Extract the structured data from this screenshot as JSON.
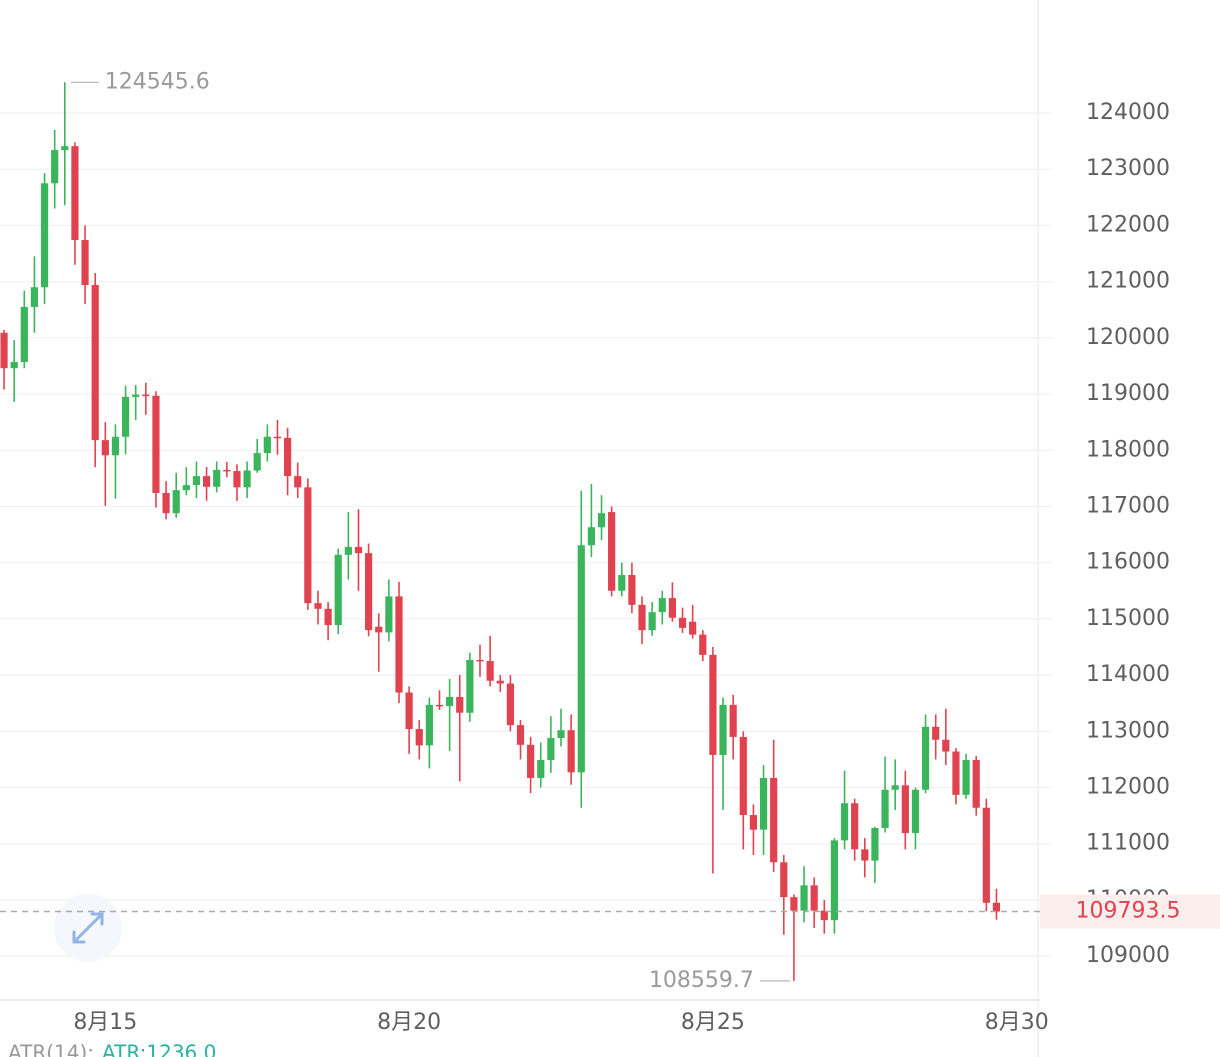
{
  "chart_data": {
    "type": "candlestick",
    "open": [
      120090,
      119460,
      119570,
      120550,
      120900,
      122750,
      123340,
      123410,
      121740,
      120940,
      118180,
      117910,
      118240,
      118950,
      118990,
      118970,
      117240,
      116880,
      117290,
      117380,
      117540,
      117350,
      117650,
      117630,
      117340,
      117640,
      117950,
      118240,
      118220,
      117540,
      117340,
      115280,
      115180,
      114890,
      116140,
      116280,
      116170,
      114860,
      114760,
      115400,
      113690,
      113040,
      112750,
      113470,
      113450,
      113610,
      113330,
      114270,
      114250,
      113900,
      113850,
      113110,
      112760,
      112170,
      112490,
      112880,
      113020,
      112270,
      116310,
      116630,
      116900,
      115500,
      115780,
      115250,
      114800,
      115120,
      115370,
      115020,
      114950,
      114720,
      114360,
      112580,
      113470,
      112900,
      111510,
      111250,
      112170,
      110670,
      110050,
      109810,
      110260,
      109810,
      109640,
      111060,
      111720,
      110900,
      110700,
      111280,
      111960,
      112040,
      111190,
      111960,
      113080,
      112850,
      112640,
      111870,
      112490,
      111640,
      109950
    ],
    "high": [
      120140,
      119960,
      120840,
      121450,
      122930,
      123700,
      124545.6,
      123480,
      122000,
      121150,
      118500,
      118460,
      119150,
      119160,
      119200,
      119050,
      117450,
      117600,
      117700,
      117800,
      117700,
      117800,
      117790,
      117750,
      117800,
      118200,
      118460,
      118540,
      118400,
      117780,
      117500,
      115500,
      115300,
      116250,
      116900,
      116950,
      116340,
      115100,
      115700,
      115660,
      113800,
      113200,
      113600,
      113730,
      113930,
      114000,
      114400,
      114540,
      114700,
      114000,
      114000,
      113200,
      112900,
      112800,
      113270,
      113400,
      113300,
      117280,
      117400,
      117200,
      117000,
      116000,
      116000,
      115400,
      115300,
      115500,
      115650,
      115200,
      115250,
      114800,
      114500,
      113600,
      113650,
      113000,
      111700,
      112400,
      112850,
      110800,
      110100,
      110600,
      110400,
      110000,
      111100,
      112300,
      111800,
      111100,
      111300,
      112550,
      112500,
      112300,
      112000,
      113300,
      113300,
      113400,
      112700,
      112600,
      112560,
      111800,
      110200
    ],
    "low": [
      119080,
      118860,
      119460,
      120090,
      120600,
      122300,
      122360,
      121300,
      120600,
      117700,
      117010,
      117140,
      117930,
      118540,
      118630,
      116980,
      116770,
      116800,
      117200,
      117150,
      117100,
      117250,
      117520,
      117100,
      117150,
      117600,
      117800,
      117920,
      117200,
      117150,
      115160,
      114900,
      114620,
      114730,
      115700,
      115500,
      114690,
      114060,
      114600,
      113500,
      112600,
      112500,
      112340,
      113380,
      112650,
      112110,
      113170,
      113970,
      113800,
      113700,
      113000,
      112500,
      111900,
      112000,
      112260,
      112730,
      112050,
      111640,
      116100,
      116400,
      115400,
      115400,
      115100,
      114550,
      114700,
      114900,
      114950,
      114750,
      114650,
      114250,
      110470,
      111600,
      112500,
      110900,
      110800,
      110800,
      110500,
      109380,
      108559.7,
      109600,
      109500,
      109400,
      109400,
      110900,
      110700,
      110400,
      110300,
      111200,
      111600,
      110900,
      110900,
      111900,
      112500,
      112400,
      111700,
      111800,
      111500,
      109800,
      109650
    ],
    "close": [
      119460,
      119570,
      120550,
      120900,
      122750,
      123340,
      123410,
      121740,
      120940,
      118180,
      117910,
      118240,
      118950,
      118990,
      118970,
      117240,
      116880,
      117290,
      117380,
      117540,
      117350,
      117650,
      117630,
      117340,
      117640,
      117950,
      118240,
      118220,
      117540,
      117340,
      115280,
      115180,
      114890,
      116140,
      116280,
      116170,
      114800,
      114760,
      115400,
      113690,
      113040,
      112750,
      113470,
      113450,
      113610,
      113330,
      114270,
      114250,
      113900,
      113850,
      113110,
      112760,
      112170,
      112490,
      112880,
      113020,
      112270,
      116310,
      116630,
      116880,
      115500,
      115780,
      115250,
      114800,
      115120,
      115370,
      115020,
      114840,
      114720,
      114360,
      112580,
      113470,
      112900,
      111510,
      111250,
      112170,
      110670,
      110050,
      109810,
      110260,
      109810,
      109640,
      111060,
      111720,
      110900,
      110700,
      111280,
      111960,
      112040,
      111190,
      111960,
      113080,
      112850,
      112640,
      111870,
      112490,
      111640,
      109950,
      109793.5
    ],
    "up_color": "#3bb55b",
    "down_color": "#e0434f",
    "xlim": [
      -0.4,
      102.3
    ],
    "xticks": [
      {
        "value": 10,
        "label": "8月15"
      },
      {
        "value": 40,
        "label": "8月20"
      },
      {
        "value": 70,
        "label": "8月25"
      },
      {
        "value": 100,
        "label": "8月30"
      }
    ],
    "ylim": [
      108220,
      126010
    ],
    "yticks": [
      109000,
      110000,
      111000,
      112000,
      113000,
      114000,
      115000,
      116000,
      117000,
      118000,
      119000,
      120000,
      121000,
      122000,
      123000,
      124000
    ],
    "grid": true
  },
  "indicator": {
    "name": "ATR(14):",
    "value": "ATR:1236.0"
  }
}
